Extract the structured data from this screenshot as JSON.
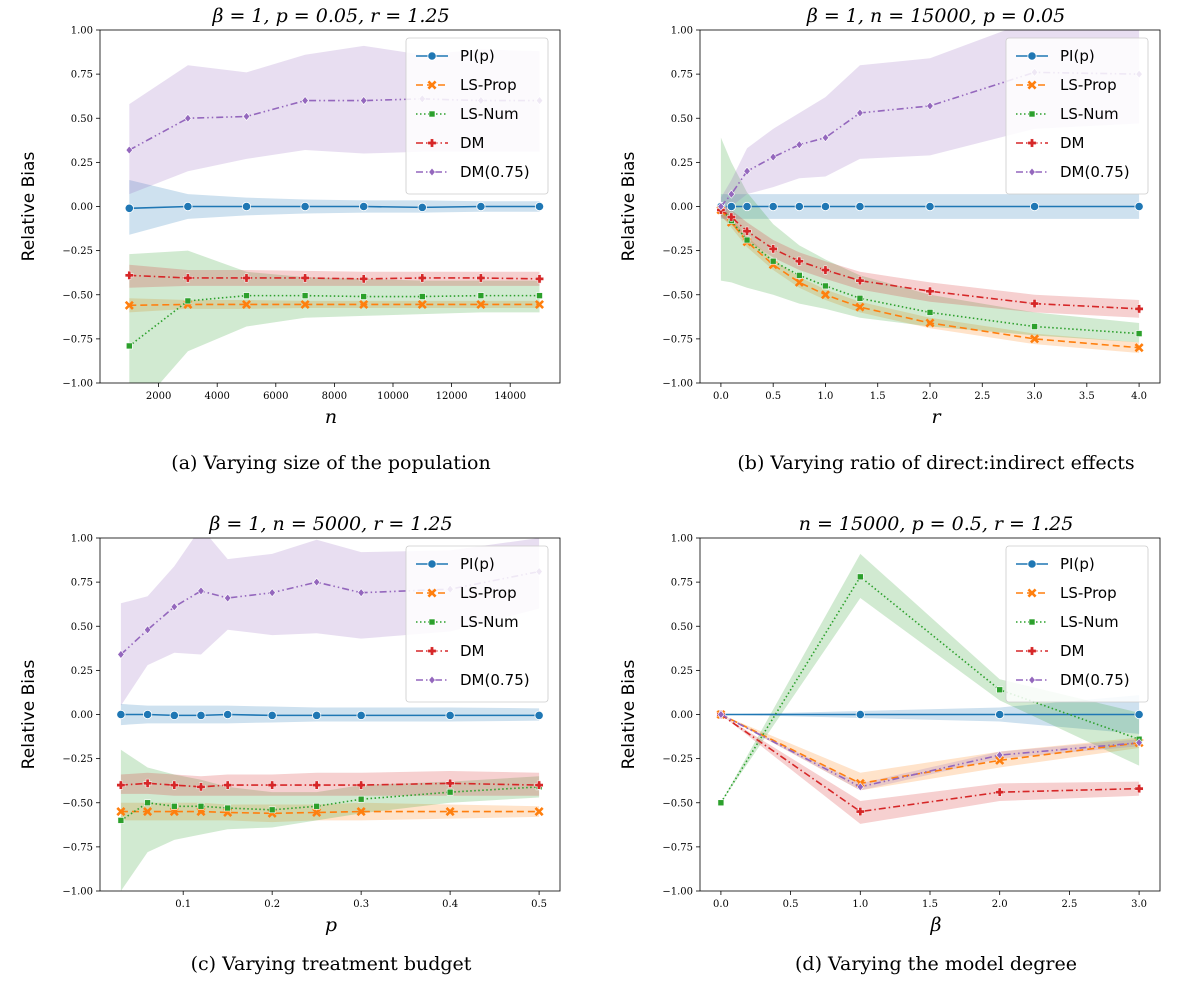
{
  "figure": {
    "legend_placement": "top-right",
    "grid": false,
    "series_styles": [
      {
        "color": "#1f77b4",
        "marker": "circle",
        "dash": "solid"
      },
      {
        "color": "#ff7f0e",
        "marker": "x",
        "dash": "dashed"
      },
      {
        "color": "#2ca02c",
        "marker": "square",
        "dash": "dotted"
      },
      {
        "color": "#d62728",
        "marker": "plus",
        "dash": "dashdot"
      },
      {
        "color": "#9467bd",
        "marker": "diamond",
        "dash": "dashdotdot"
      }
    ]
  },
  "chart_data": [
    {
      "type": "line",
      "title": "β = 1, p = 0.05, r = 1.25",
      "xlabel": "n",
      "ylabel": "Relative Bias",
      "caption": "(a) Varying size of the population",
      "xlim": [
        0,
        15700
      ],
      "ylim": [
        -1.0,
        1.0
      ],
      "xticks": [
        2000,
        4000,
        6000,
        8000,
        10000,
        12000,
        14000
      ],
      "xtick_labels": [
        "2000",
        "4000",
        "6000",
        "8000",
        "10000",
        "12000",
        "14000"
      ],
      "yticks": [
        -1.0,
        -0.75,
        -0.5,
        -0.25,
        0.0,
        0.25,
        0.5,
        0.75,
        1.0
      ],
      "ytick_labels": [
        "−1.00",
        "−0.75",
        "−0.50",
        "−0.25",
        "0.00",
        "0.25",
        "0.50",
        "0.75",
        "1.00"
      ],
      "x": [
        1000,
        3000,
        5000,
        7000,
        9000,
        11000,
        13000,
        15000
      ],
      "series": [
        {
          "name": "PI(p)",
          "values": [
            -0.01,
            0.0,
            0.0,
            0.0,
            0.0,
            -0.005,
            0.0,
            0.0
          ],
          "lower": [
            -0.16,
            -0.07,
            -0.05,
            -0.04,
            -0.035,
            -0.035,
            -0.03,
            -0.03
          ],
          "upper": [
            0.15,
            0.07,
            0.05,
            0.04,
            0.035,
            0.035,
            0.03,
            0.03
          ]
        },
        {
          "name": "LS-Prop",
          "values": [
            -0.56,
            -0.555,
            -0.555,
            -0.555,
            -0.555,
            -0.555,
            -0.555,
            -0.555
          ],
          "lower": [
            -0.6,
            -0.58,
            -0.58,
            -0.575,
            -0.575,
            -0.575,
            -0.575,
            -0.575
          ],
          "upper": [
            -0.52,
            -0.53,
            -0.53,
            -0.535,
            -0.535,
            -0.535,
            -0.535,
            -0.535
          ]
        },
        {
          "name": "LS-Num",
          "values": [
            -0.79,
            -0.535,
            -0.505,
            -0.505,
            -0.51,
            -0.51,
            -0.505,
            -0.505
          ],
          "lower": [
            -1.2,
            -0.82,
            -0.68,
            -0.63,
            -0.62,
            -0.61,
            -0.6,
            -0.6
          ],
          "upper": [
            -0.27,
            -0.25,
            -0.37,
            -0.4,
            -0.41,
            -0.42,
            -0.42,
            -0.42
          ]
        },
        {
          "name": "DM",
          "values": [
            -0.39,
            -0.405,
            -0.405,
            -0.405,
            -0.41,
            -0.405,
            -0.405,
            -0.41
          ],
          "lower": [
            -0.46,
            -0.45,
            -0.45,
            -0.45,
            -0.45,
            -0.45,
            -0.45,
            -0.45
          ],
          "upper": [
            -0.33,
            -0.36,
            -0.36,
            -0.365,
            -0.37,
            -0.37,
            -0.37,
            -0.37
          ]
        },
        {
          "name": "DM(0.75)",
          "values": [
            0.32,
            0.5,
            0.51,
            0.6,
            0.6,
            0.61,
            0.6,
            0.6
          ],
          "lower": [
            0.07,
            0.2,
            0.27,
            0.32,
            0.3,
            0.31,
            0.31,
            0.31
          ],
          "upper": [
            0.58,
            0.8,
            0.76,
            0.86,
            0.91,
            0.86,
            0.89,
            0.88
          ]
        }
      ]
    },
    {
      "type": "line",
      "title": "β = 1, n = 15000, p = 0.05",
      "xlabel": "r",
      "ylabel": "Relative Bias",
      "caption": "(b) Varying ratio of direct:indirect effects",
      "xlim": [
        -0.2,
        4.2
      ],
      "ylim": [
        -1.0,
        1.0
      ],
      "xticks": [
        0.0,
        0.5,
        1.0,
        1.5,
        2.0,
        2.5,
        3.0,
        3.5,
        4.0
      ],
      "xtick_labels": [
        "0.0",
        "0.5",
        "1.0",
        "1.5",
        "2.0",
        "2.5",
        "3.0",
        "3.5",
        "4.0"
      ],
      "yticks": [
        -1.0,
        -0.75,
        -0.5,
        -0.25,
        0.0,
        0.25,
        0.5,
        0.75,
        1.0
      ],
      "ytick_labels": [
        "−1.00",
        "−0.75",
        "−0.50",
        "−0.25",
        "0.00",
        "0.25",
        "0.50",
        "0.75",
        "1.00"
      ],
      "x": [
        0.0,
        0.1,
        0.25,
        0.5,
        0.75,
        1.0,
        1.33,
        2.0,
        3.0,
        4.0
      ],
      "series": [
        {
          "name": "PI(p)",
          "values": [
            0.0,
            0.0,
            0.0,
            0.0,
            0.0,
            0.0,
            0.0,
            0.0,
            0.0,
            0.0
          ],
          "lower": [
            -0.07,
            -0.07,
            -0.07,
            -0.07,
            -0.07,
            -0.07,
            -0.07,
            -0.07,
            -0.07,
            -0.07
          ],
          "upper": [
            0.07,
            0.07,
            0.07,
            0.07,
            0.07,
            0.07,
            0.07,
            0.07,
            0.07,
            0.07
          ]
        },
        {
          "name": "LS-Prop",
          "values": [
            -0.02,
            -0.09,
            -0.2,
            -0.33,
            -0.43,
            -0.5,
            -0.57,
            -0.66,
            -0.75,
            -0.8
          ],
          "lower": [
            -0.05,
            -0.12,
            -0.23,
            -0.36,
            -0.46,
            -0.53,
            -0.6,
            -0.69,
            -0.78,
            -0.83
          ],
          "upper": [
            0.01,
            -0.06,
            -0.17,
            -0.3,
            -0.4,
            -0.47,
            -0.54,
            -0.63,
            -0.72,
            -0.77
          ]
        },
        {
          "name": "LS-Num",
          "values": [
            -0.01,
            -0.08,
            -0.19,
            -0.31,
            -0.39,
            -0.45,
            -0.52,
            -0.6,
            -0.68,
            -0.72
          ],
          "lower": [
            -0.42,
            -0.43,
            -0.46,
            -0.5,
            -0.55,
            -0.58,
            -0.63,
            -0.68,
            -0.73,
            -0.77
          ],
          "upper": [
            0.39,
            0.25,
            0.08,
            -0.1,
            -0.22,
            -0.3,
            -0.39,
            -0.5,
            -0.6,
            -0.66
          ]
        },
        {
          "name": "DM",
          "values": [
            -0.02,
            -0.06,
            -0.14,
            -0.24,
            -0.31,
            -0.36,
            -0.42,
            -0.48,
            -0.55,
            -0.58
          ],
          "lower": [
            -0.06,
            -0.1,
            -0.19,
            -0.29,
            -0.36,
            -0.41,
            -0.47,
            -0.54,
            -0.6,
            -0.63
          ],
          "upper": [
            0.02,
            -0.02,
            -0.09,
            -0.19,
            -0.26,
            -0.31,
            -0.37,
            -0.43,
            -0.5,
            -0.53
          ]
        },
        {
          "name": "DM(0.75)",
          "values": [
            0.0,
            0.07,
            0.2,
            0.28,
            0.35,
            0.39,
            0.53,
            0.57,
            0.76,
            0.75
          ],
          "lower": [
            -0.05,
            0.0,
            0.07,
            0.11,
            0.16,
            0.17,
            0.27,
            0.29,
            0.44,
            0.47
          ],
          "upper": [
            0.05,
            0.15,
            0.33,
            0.44,
            0.53,
            0.62,
            0.8,
            0.84,
            1.06,
            1.02
          ]
        }
      ]
    },
    {
      "type": "line",
      "title": "β = 1, n = 5000, r = 1.25",
      "xlabel": "p",
      "ylabel": "Relative Bias",
      "caption": "(c) Varying treatment budget",
      "xlim": [
        0.0065,
        0.5235
      ],
      "ylim": [
        -1.0,
        1.0
      ],
      "xticks": [
        0.1,
        0.2,
        0.3,
        0.4,
        0.5
      ],
      "xtick_labels": [
        "0.1",
        "0.2",
        "0.3",
        "0.4",
        "0.5"
      ],
      "yticks": [
        -1.0,
        -0.75,
        -0.5,
        -0.25,
        0.0,
        0.25,
        0.5,
        0.75,
        1.0
      ],
      "ytick_labels": [
        "−1.00",
        "−0.75",
        "−0.50",
        "−0.25",
        "0.00",
        "0.25",
        "0.50",
        "0.75",
        "1.00"
      ],
      "x": [
        0.03,
        0.06,
        0.09,
        0.12,
        0.15,
        0.2,
        0.25,
        0.3,
        0.4,
        0.5
      ],
      "series": [
        {
          "name": "PI(p)",
          "values": [
            0.0,
            0.0,
            -0.005,
            -0.005,
            0.0,
            -0.005,
            -0.005,
            -0.005,
            -0.005,
            -0.005
          ],
          "lower": [
            -0.06,
            -0.05,
            -0.05,
            -0.05,
            -0.05,
            -0.045,
            -0.04,
            -0.04,
            -0.04,
            -0.035
          ],
          "upper": [
            0.06,
            0.05,
            0.05,
            0.05,
            0.05,
            0.045,
            0.04,
            0.04,
            0.04,
            0.035
          ]
        },
        {
          "name": "LS-Prop",
          "values": [
            -0.55,
            -0.55,
            -0.55,
            -0.55,
            -0.555,
            -0.56,
            -0.555,
            -0.55,
            -0.55,
            -0.55
          ],
          "lower": [
            -0.6,
            -0.6,
            -0.6,
            -0.6,
            -0.6,
            -0.61,
            -0.6,
            -0.6,
            -0.59,
            -0.58
          ],
          "upper": [
            -0.5,
            -0.5,
            -0.5,
            -0.5,
            -0.51,
            -0.51,
            -0.51,
            -0.5,
            -0.51,
            -0.52
          ]
        },
        {
          "name": "LS-Num",
          "values": [
            -0.6,
            -0.5,
            -0.52,
            -0.52,
            -0.53,
            -0.54,
            -0.52,
            -0.48,
            -0.44,
            -0.41
          ],
          "lower": [
            -1.0,
            -0.78,
            -0.71,
            -0.68,
            -0.65,
            -0.64,
            -0.6,
            -0.56,
            -0.5,
            -0.47
          ],
          "upper": [
            -0.2,
            -0.3,
            -0.34,
            -0.37,
            -0.41,
            -0.44,
            -0.44,
            -0.4,
            -0.38,
            -0.35
          ]
        },
        {
          "name": "DM",
          "values": [
            -0.4,
            -0.39,
            -0.4,
            -0.41,
            -0.4,
            -0.4,
            -0.4,
            -0.4,
            -0.39,
            -0.4
          ],
          "lower": [
            -0.45,
            -0.45,
            -0.46,
            -0.46,
            -0.46,
            -0.46,
            -0.46,
            -0.46,
            -0.46,
            -0.46
          ],
          "upper": [
            -0.34,
            -0.33,
            -0.34,
            -0.35,
            -0.34,
            -0.34,
            -0.33,
            -0.33,
            -0.32,
            -0.33
          ]
        },
        {
          "name": "DM(0.75)",
          "values": [
            0.34,
            0.48,
            0.61,
            0.7,
            0.66,
            0.69,
            0.75,
            0.69,
            0.71,
            0.81
          ],
          "lower": [
            0.05,
            0.28,
            0.35,
            0.34,
            0.48,
            0.45,
            0.46,
            0.43,
            0.47,
            0.6
          ],
          "upper": [
            0.63,
            0.67,
            0.84,
            1.06,
            0.88,
            0.91,
            0.99,
            0.92,
            0.93,
            1.0
          ]
        }
      ]
    },
    {
      "type": "line",
      "title": "n = 15000, p = 0.5, r = 1.25",
      "xlabel": "β",
      "ylabel": "Relative Bias",
      "caption": "(d) Varying the model degree",
      "xlim": [
        -0.15,
        3.15
      ],
      "ylim": [
        -1.0,
        1.0
      ],
      "xticks": [
        0.0,
        0.5,
        1.0,
        1.5,
        2.0,
        2.5,
        3.0
      ],
      "xtick_labels": [
        "0.0",
        "0.5",
        "1.0",
        "1.5",
        "2.0",
        "2.5",
        "3.0"
      ],
      "yticks": [
        -1.0,
        -0.75,
        -0.5,
        -0.25,
        0.0,
        0.25,
        0.5,
        0.75,
        1.0
      ],
      "ytick_labels": [
        "−1.00",
        "−0.75",
        "−0.50",
        "−0.25",
        "0.00",
        "0.25",
        "0.50",
        "0.75",
        "1.00"
      ],
      "x": [
        0,
        1,
        2,
        3
      ],
      "series": [
        {
          "name": "PI(p)",
          "values": [
            0.0,
            0.0,
            0.0,
            0.0
          ],
          "lower": [
            0.0,
            -0.02,
            -0.04,
            -0.11
          ],
          "upper": [
            0.0,
            0.02,
            0.04,
            0.11
          ]
        },
        {
          "name": "LS-Prop",
          "values": [
            0.0,
            -0.39,
            -0.26,
            -0.16
          ],
          "lower": [
            0.0,
            -0.43,
            -0.3,
            -0.19
          ],
          "upper": [
            0.0,
            -0.33,
            -0.21,
            -0.13
          ]
        },
        {
          "name": "LS-Num",
          "values": [
            -0.5,
            0.78,
            0.14,
            -0.14
          ],
          "lower": [
            -0.5,
            0.66,
            0.08,
            -0.29
          ],
          "upper": [
            -0.5,
            0.91,
            0.2,
            0.01
          ]
        },
        {
          "name": "DM",
          "values": [
            0.0,
            -0.55,
            -0.44,
            -0.42
          ],
          "lower": [
            0.0,
            -0.62,
            -0.49,
            -0.46
          ],
          "upper": [
            0.0,
            -0.49,
            -0.39,
            -0.38
          ]
        },
        {
          "name": "DM(0.75)",
          "values": [
            0.0,
            -0.41,
            -0.23,
            -0.16
          ],
          "lower": [
            0.0,
            -0.43,
            -0.25,
            -0.18
          ],
          "upper": [
            0.0,
            -0.39,
            -0.21,
            -0.14
          ]
        }
      ]
    }
  ]
}
